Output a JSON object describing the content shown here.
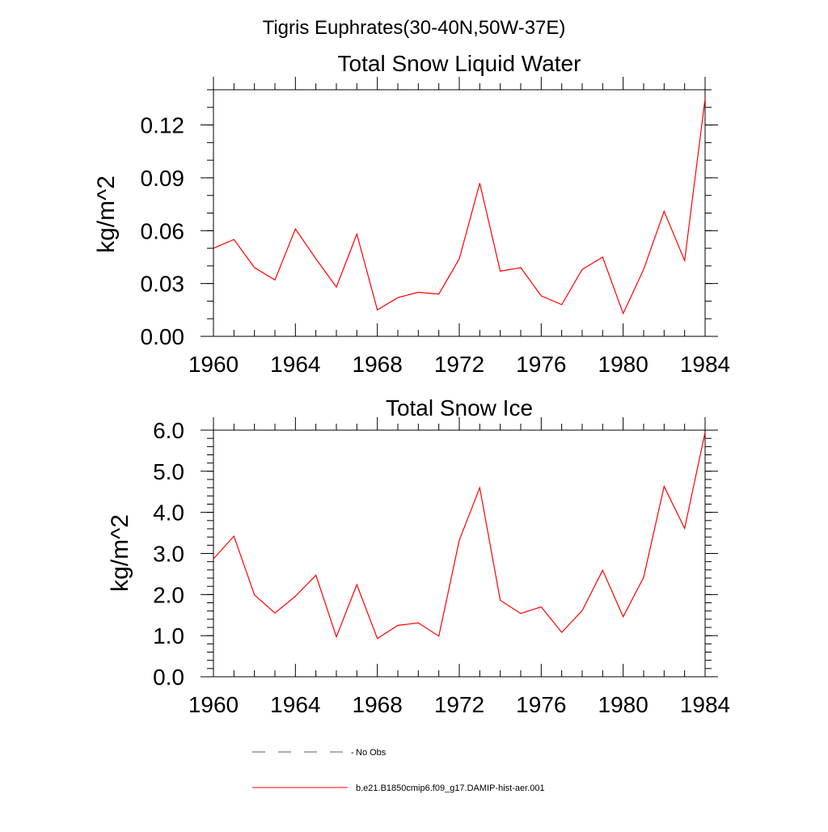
{
  "figure_title": "Tigris Euphrates(30-40N,50W-37E)",
  "chart_data": [
    {
      "type": "line",
      "title": "Total Snow Liquid Water",
      "xlabel": "",
      "ylabel": "kg/m^2",
      "xlim": [
        1960,
        1984
      ],
      "ylim": [
        0,
        0.14
      ],
      "xticks": [
        "1960",
        "1964",
        "1968",
        "1972",
        "1976",
        "1980",
        "1984"
      ],
      "yticks": [
        "0.00",
        "0.03",
        "0.06",
        "0.09",
        "0.12"
      ],
      "x": [
        1960,
        1961,
        1962,
        1963,
        1964,
        1965,
        1966,
        1967,
        1968,
        1969,
        1970,
        1971,
        1972,
        1973,
        1974,
        1975,
        1976,
        1977,
        1978,
        1979,
        1980,
        1981,
        1982,
        1983,
        1984
      ],
      "series": [
        {
          "name": "b.e21.B1850cmip6.f09_g17.DAMIP-hist-aer.001",
          "color": "#ff0000",
          "values": [
            0.05,
            0.055,
            0.039,
            0.032,
            0.061,
            0.044,
            0.028,
            0.058,
            0.015,
            0.022,
            0.025,
            0.024,
            0.044,
            0.087,
            0.037,
            0.039,
            0.023,
            0.018,
            0.038,
            0.045,
            0.013,
            0.038,
            0.071,
            0.043,
            0.135
          ]
        }
      ]
    },
    {
      "type": "line",
      "title": "Total Snow Ice",
      "xlabel": "",
      "ylabel": "kg/m^2",
      "xlim": [
        1960,
        1984
      ],
      "ylim": [
        0,
        6.0
      ],
      "xticks": [
        "1960",
        "1964",
        "1968",
        "1972",
        "1976",
        "1980",
        "1984"
      ],
      "yticks": [
        "0.0",
        "1.0",
        "2.0",
        "3.0",
        "4.0",
        "5.0",
        "6.0"
      ],
      "x": [
        1960,
        1961,
        1962,
        1963,
        1964,
        1965,
        1966,
        1967,
        1968,
        1969,
        1970,
        1971,
        1972,
        1973,
        1974,
        1975,
        1976,
        1977,
        1978,
        1979,
        1980,
        1981,
        1982,
        1983,
        1984
      ],
      "series": [
        {
          "name": "b.e21.B1850cmip6.f09_g17.DAMIP-hist-aer.001",
          "color": "#ff0000",
          "values": [
            2.87,
            3.42,
            1.99,
            1.55,
            1.96,
            2.47,
            0.97,
            2.24,
            0.93,
            1.25,
            1.31,
            0.99,
            3.32,
            4.6,
            1.86,
            1.54,
            1.7,
            1.08,
            1.61,
            2.59,
            1.46,
            2.42,
            4.63,
            3.61,
            5.95
          ]
        }
      ]
    }
  ],
  "legend": [
    {
      "label": "No Obs",
      "style": "dashed",
      "color": "#555577"
    },
    {
      "label": "b.e21.B1850cmip6.f09_g17.DAMIP-hist-aer.001",
      "style": "solid",
      "color": "#ff0000"
    }
  ]
}
